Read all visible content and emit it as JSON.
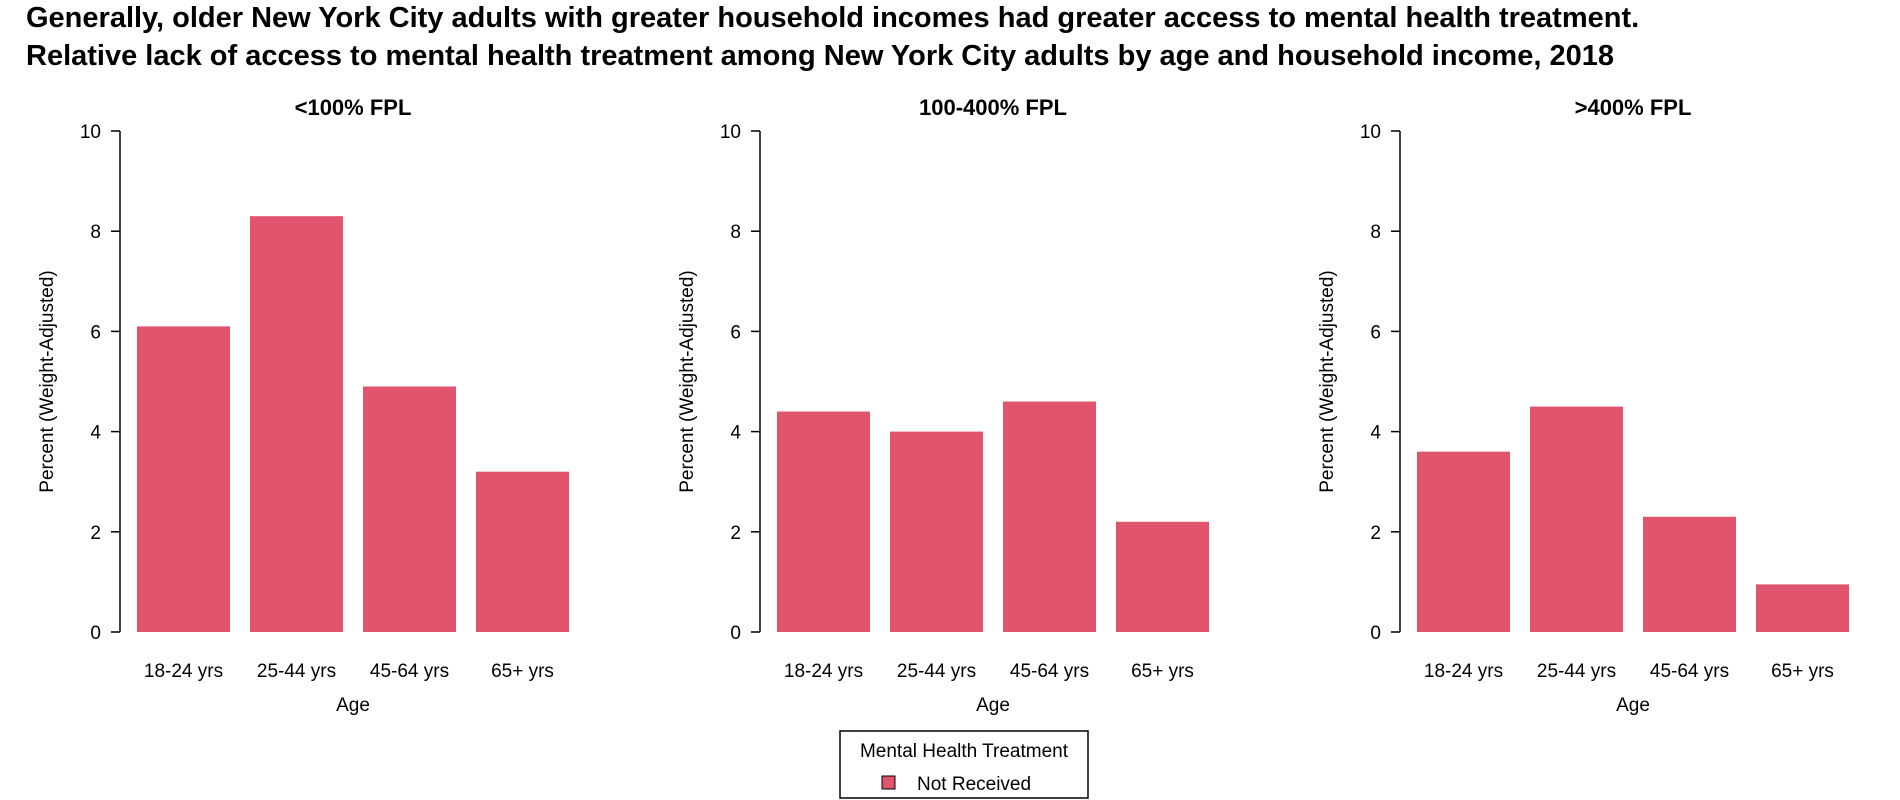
{
  "header": {
    "title": "Generally, older New York City adults with greater household incomes had greater access to mental health treatment.",
    "subtitle": "Relative lack of access to mental health treatment among New York City adults by age and household income, 2018"
  },
  "legend": {
    "title": "Mental Health Treatment",
    "label": "Not Received",
    "position": "bottom-center"
  },
  "colors": {
    "bar": "#E0556D"
  },
  "chart_data": [
    {
      "type": "bar",
      "title": "<100% FPL",
      "xlabel": "Age",
      "ylabel": "Percent (Weight-Adjusted)",
      "ylim": [
        0,
        10
      ],
      "yticks": [
        0,
        2,
        4,
        6,
        8,
        10
      ],
      "grid": false,
      "categories": [
        "18-24 yrs",
        "25-44 yrs",
        "45-64 yrs",
        "65+ yrs"
      ],
      "series": [
        {
          "name": "Not Received",
          "values": [
            6.1,
            8.3,
            4.9,
            3.2
          ]
        }
      ]
    },
    {
      "type": "bar",
      "title": "100-400% FPL",
      "xlabel": "Age",
      "ylabel": "Percent (Weight-Adjusted)",
      "ylim": [
        0,
        10
      ],
      "yticks": [
        0,
        2,
        4,
        6,
        8,
        10
      ],
      "grid": false,
      "categories": [
        "18-24 yrs",
        "25-44 yrs",
        "45-64 yrs",
        "65+ yrs"
      ],
      "series": [
        {
          "name": "Not Received",
          "values": [
            4.4,
            4.0,
            4.6,
            2.2
          ]
        }
      ]
    },
    {
      "type": "bar",
      "title": ">400% FPL",
      "xlabel": "Age",
      "ylabel": "Percent (Weight-Adjusted)",
      "ylim": [
        0,
        10
      ],
      "yticks": [
        0,
        2,
        4,
        6,
        8,
        10
      ],
      "grid": false,
      "categories": [
        "18-24 yrs",
        "25-44 yrs",
        "45-64 yrs",
        "65+ yrs"
      ],
      "series": [
        {
          "name": "Not Received",
          "values": [
            3.6,
            4.5,
            2.3,
            0.95
          ]
        }
      ]
    }
  ]
}
